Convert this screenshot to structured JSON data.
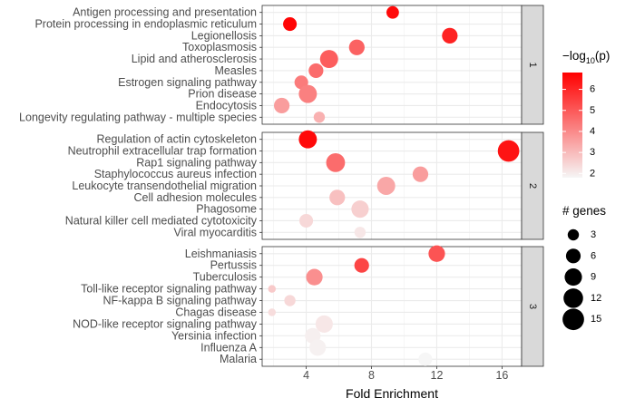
{
  "chart_data": {
    "type": "scatter",
    "xlabel": "Fold Enrichment",
    "xticks": [
      4,
      8,
      12,
      16
    ],
    "xlim": [
      1.3,
      17.2
    ],
    "panels": [
      {
        "strip": "1",
        "terms": [
          {
            "name": "Antigen processing and presentation",
            "x": 9.3,
            "genes": 4,
            "neglog10p": 6.6
          },
          {
            "name": "Protein processing in endoplasmic reticulum",
            "x": 3.0,
            "genes": 5,
            "neglog10p": 6.7
          },
          {
            "name": "Legionellosis",
            "x": 12.8,
            "genes": 7,
            "neglog10p": 6.1
          },
          {
            "name": "Toxoplasmosis",
            "x": 7.1,
            "genes": 7,
            "neglog10p": 4.8
          },
          {
            "name": "Lipid and atherosclerosis",
            "x": 5.4,
            "genes": 10,
            "neglog10p": 4.9
          },
          {
            "name": "Measles",
            "x": 4.6,
            "genes": 6,
            "neglog10p": 4.6
          },
          {
            "name": "Estrogen signaling pathway",
            "x": 3.7,
            "genes": 5,
            "neglog10p": 4.3
          },
          {
            "name": "Prion disease",
            "x": 4.1,
            "genes": 10,
            "neglog10p": 4.2
          },
          {
            "name": "Endocytosis",
            "x": 2.5,
            "genes": 7,
            "neglog10p": 3.6
          },
          {
            "name": "Longevity regulating pathway - multiple species",
            "x": 4.8,
            "genes": 3,
            "neglog10p": 3.2
          }
        ]
      },
      {
        "strip": "2",
        "terms": [
          {
            "name": "Regulation of actin cytoskeleton",
            "x": 4.1,
            "genes": 10,
            "neglog10p": 6.6
          },
          {
            "name": "Neutrophil extracellular trap formation",
            "x": 16.4,
            "genes": 15,
            "neglog10p": 6.4
          },
          {
            "name": "Rap1 signaling pathway",
            "x": 5.8,
            "genes": 11,
            "neglog10p": 4.6
          },
          {
            "name": "Staphylococcus aureus infection",
            "x": 11.0,
            "genes": 7,
            "neglog10p": 3.6
          },
          {
            "name": "Leukocyte transendothelial migration",
            "x": 8.9,
            "genes": 10,
            "neglog10p": 3.4
          },
          {
            "name": "Cell adhesion molecules",
            "x": 5.9,
            "genes": 7,
            "neglog10p": 2.9
          },
          {
            "name": "Phagosome",
            "x": 7.3,
            "genes": 9,
            "neglog10p": 2.6
          },
          {
            "name": "Natural killer cell mediated cytotoxicity",
            "x": 4.0,
            "genes": 5,
            "neglog10p": 2.4
          },
          {
            "name": "Viral myocarditis",
            "x": 7.3,
            "genes": 3,
            "neglog10p": 2.1
          }
        ]
      },
      {
        "strip": "3",
        "terms": [
          {
            "name": "Leishmaniasis",
            "x": 12.0,
            "genes": 8,
            "neglog10p": 5.1
          },
          {
            "name": "Pertussis",
            "x": 7.4,
            "genes": 6,
            "neglog10p": 5.4
          },
          {
            "name": "Tuberculosis",
            "x": 4.5,
            "genes": 8,
            "neglog10p": 3.9
          },
          {
            "name": "Toll-like receptor signaling pathway",
            "x": 1.9,
            "genes": 1,
            "neglog10p": 2.7
          },
          {
            "name": "NF-kappa B signaling pathway",
            "x": 3.0,
            "genes": 3,
            "neglog10p": 2.4
          },
          {
            "name": "Chagas disease",
            "x": 1.9,
            "genes": 1,
            "neglog10p": 2.3
          },
          {
            "name": "NOD-like receptor signaling pathway",
            "x": 5.1,
            "genes": 9,
            "neglog10p": 2.1
          },
          {
            "name": "Yersinia infection",
            "x": 4.4,
            "genes": 7,
            "neglog10p": 1.95
          },
          {
            "name": "Influenza A",
            "x": 4.7,
            "genes": 8,
            "neglog10p": 1.9
          },
          {
            "name": "Malaria",
            "x": 11.3,
            "genes": 5,
            "neglog10p": 1.8
          }
        ]
      }
    ],
    "color_legend": {
      "title_prefix": "−log",
      "title_sub": "10",
      "title_suffix": "(p)",
      "breaks": [
        2,
        3,
        4,
        5,
        6
      ],
      "range": [
        1.8,
        6.8
      ],
      "low_color": "#f6f6f6",
      "high_color": "#ff0000"
    },
    "size_legend": {
      "title": "# genes",
      "breaks": [
        3,
        6,
        9,
        12,
        15
      ]
    }
  }
}
